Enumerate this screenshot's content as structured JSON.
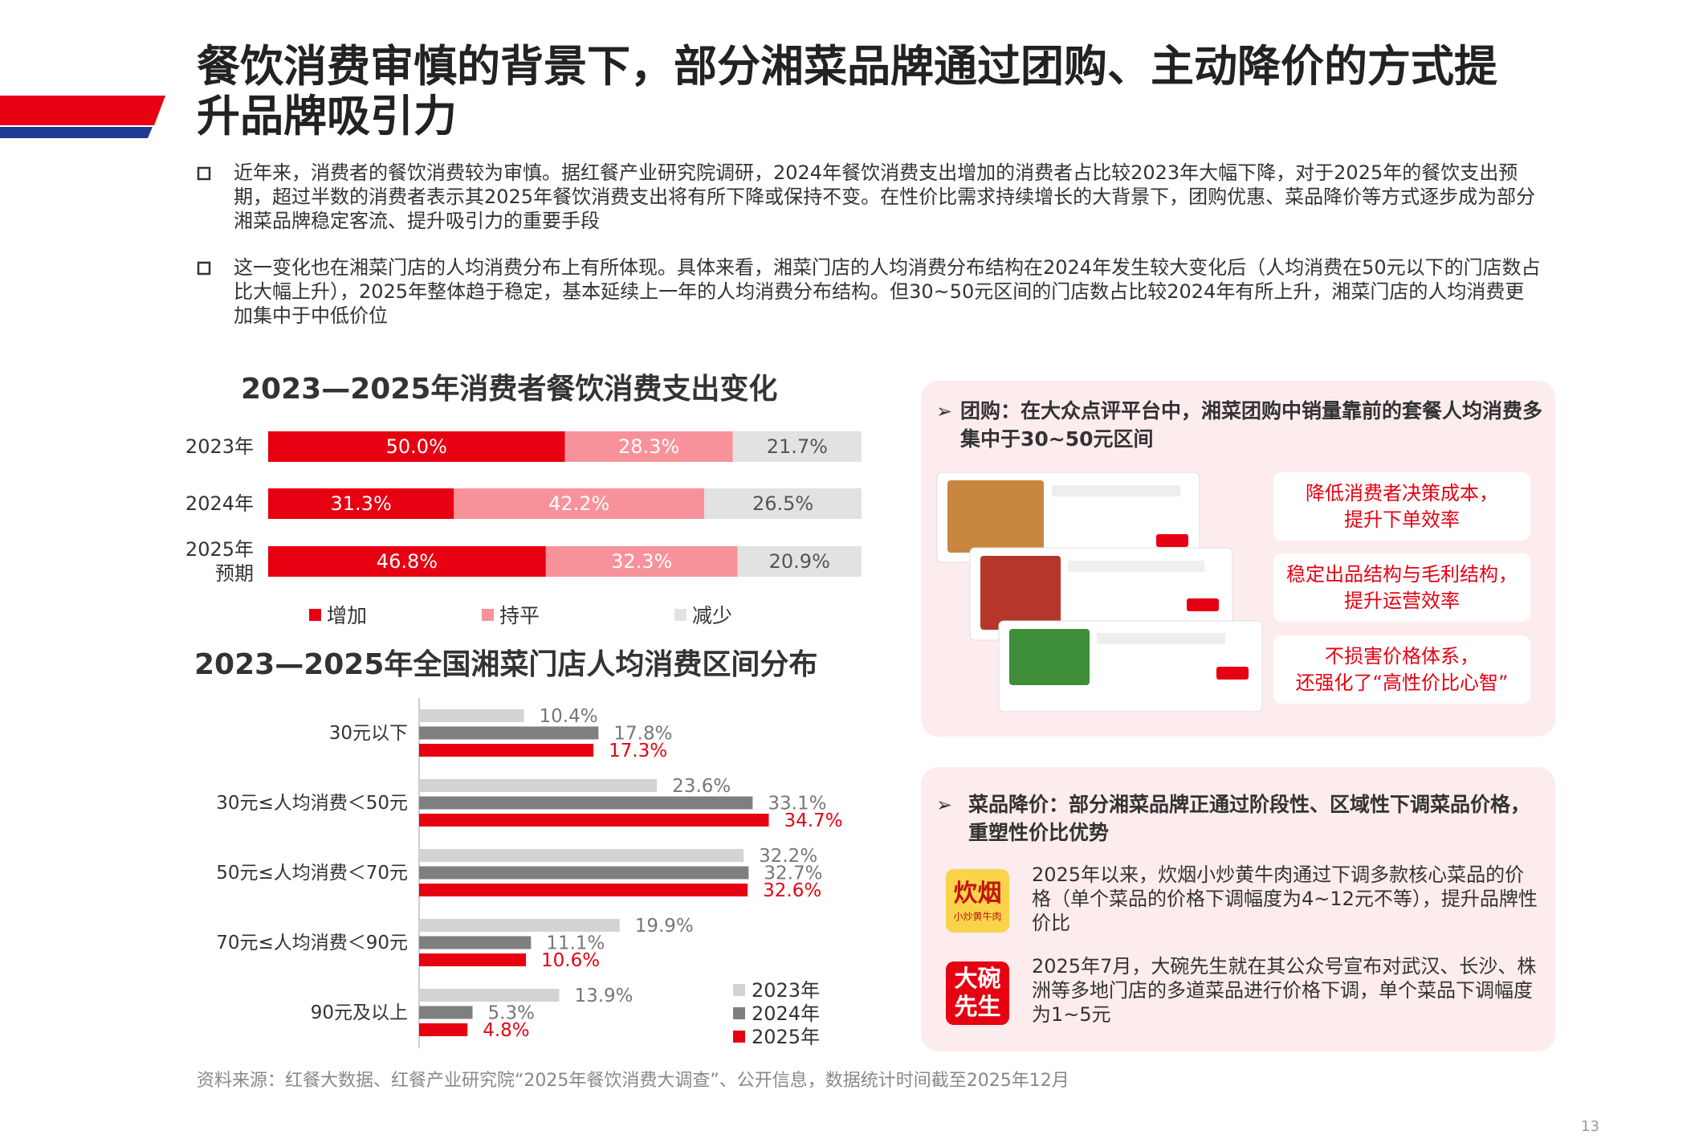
{
  "header": {
    "title": "餐饮消费审慎的背景下，部分湘菜品牌通过团购、主动降价的方式提升品牌吸引力"
  },
  "bullets": [
    "近年来，消费者的餐饮消费较为审慎。据红餐产业研究院调研，2024年餐饮消费支出增加的消费者占比较2023年大幅下降，对于2025年的餐饮支出预期，超过半数的消费者表示其2025年餐饮消费支出将有所下降或保持不变。在性价比需求持续增长的大背景下，团购优惠、菜品降价等方式逐步成为部分湘菜品牌稳定客流、提升吸引力的重要手段",
    "这一变化也在湘菜门店的人均消费分布上有所体现。具体来看，湘菜门店的人均消费分布结构在2024年发生较大变化后（人均消费在50元以下的门店数占比大幅上升），2025年整体趋于稳定，基本延续上一年的人均消费分布结构。但30~50元区间的门店数占比较2024年有所上升，湘菜门店的人均消费更加集中于中低价位"
  ],
  "chart_data": [
    {
      "type": "stacked-bar",
      "title": "2023—2025年消费者餐饮消费支出变化",
      "categories": [
        "2023年",
        "2024年",
        "2025年\n预期"
      ],
      "series": [
        {
          "name": "增加",
          "color": "#e60012",
          "values": [
            50.0,
            31.3,
            46.8
          ],
          "value_labels": [
            "50.0%",
            "31.3%",
            "46.8%"
          ]
        },
        {
          "name": "持平",
          "color": "#f8929a",
          "values": [
            28.3,
            42.2,
            32.3
          ],
          "value_labels": [
            "28.3%",
            "42.2%",
            "32.3%"
          ]
        },
        {
          "name": "减少",
          "color": "#e2e2e2",
          "values": [
            21.7,
            26.5,
            20.9
          ],
          "value_labels": [
            "21.7%",
            "26.5%",
            "20.9%"
          ]
        }
      ]
    },
    {
      "type": "grouped-bar",
      "title": "2023—2025年全国湘菜门店人均消费区间分布",
      "categories": [
        "30元以下",
        "30元≤人均消费＜50元",
        "50元≤人均消费＜70元",
        "70元≤人均消费＜90元",
        "90元及以上"
      ],
      "series": [
        {
          "name": "2023年",
          "color": "#d3d3d3",
          "values": [
            10.4,
            23.6,
            32.2,
            19.9,
            13.9
          ],
          "value_labels": [
            "10.4%",
            "23.6%",
            "32.2%",
            "19.9%",
            "13.9%"
          ]
        },
        {
          "name": "2024年",
          "color": "#7f7f7f",
          "values": [
            17.8,
            33.1,
            32.7,
            11.1,
            5.3
          ],
          "value_labels": [
            "17.8%",
            "33.1%",
            "32.7%",
            "11.1%",
            "5.3%"
          ]
        },
        {
          "name": "2025年",
          "color": "#e60012",
          "values": [
            17.3,
            34.7,
            32.6,
            10.6,
            4.8
          ],
          "value_labels": [
            "17.3%",
            "34.7%",
            "32.6%",
            "10.6%",
            "4.8%"
          ]
        }
      ]
    }
  ],
  "panels": [
    {
      "title": "团购：在大众点评平台中，湘菜团购中销量靠前的套餐人均消费多集中于30~50元区间",
      "items": [
        "降低消费者决策成本，\n提升下单效率",
        "稳定出品结构与毛利结构，\n提升运营效率",
        "不损害价格体系，\n还强化了“高性价比心智”"
      ]
    },
    {
      "title": "菜品降价：部分湘菜品牌正通过阶段性、区域性下调菜品价格，重塑性价比优势",
      "items": [
        {
          "logo": "炊烟",
          "logo_sub": "小炒黄牛肉",
          "text": "2025年以来，炊烟小炒黄牛肉通过下调多款核心菜品的价格（单个菜品的价格下调幅度为4~12元不等），提升品牌性价比"
        },
        {
          "logo": "大碗\n先生",
          "text": "2025年7月，大碗先生就在其公众号宣布对武汉、长沙、株洲等多地门店的多道菜品进行价格下调，单个菜品下调幅度为1~5元"
        }
      ]
    }
  ],
  "source": "资料来源：红餐大数据、红餐产业研究院“2025年餐饮消费大调查”、公开信息，数据统计时间截至2025年12月",
  "page_number": "13"
}
